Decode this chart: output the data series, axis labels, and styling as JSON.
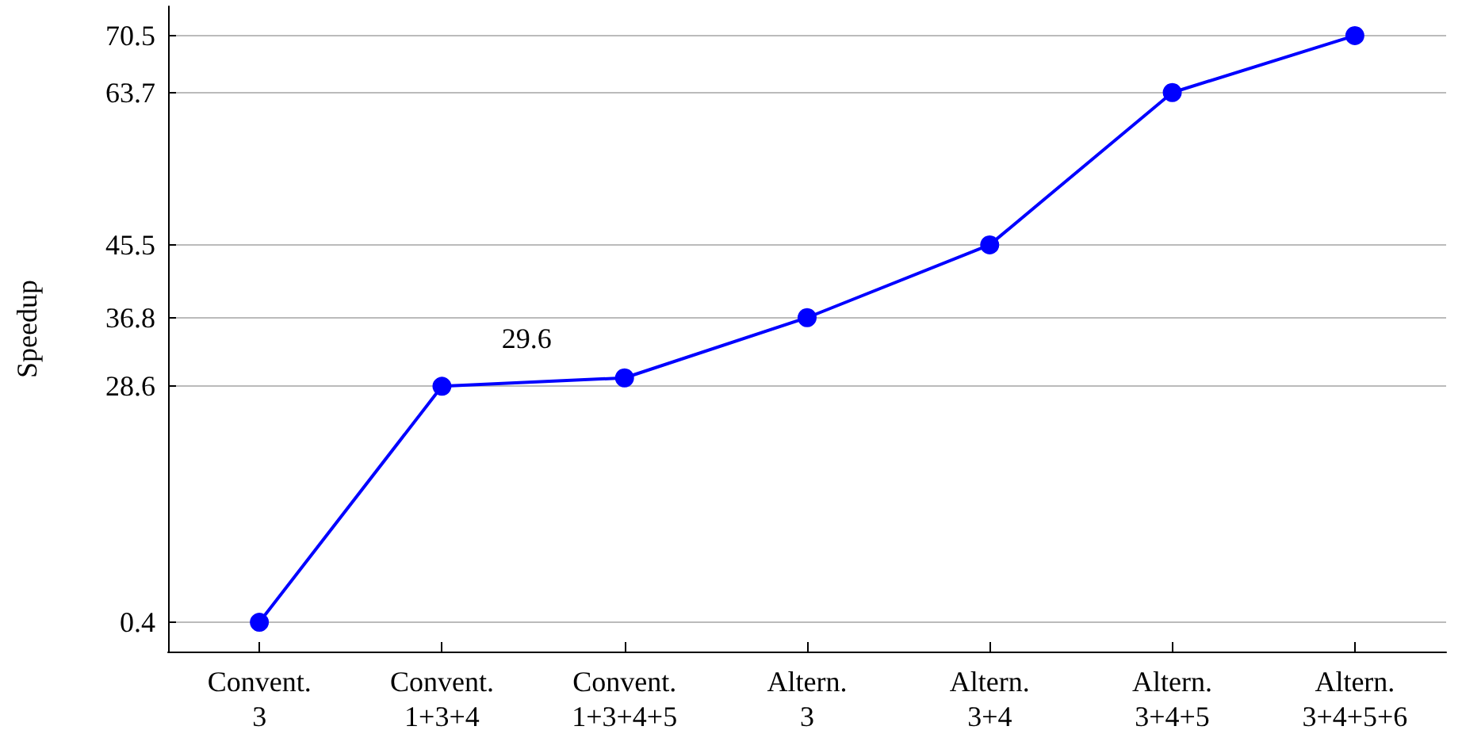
{
  "chart_data": {
    "type": "line",
    "ylabel": "Speedup",
    "categories": [
      "Convent.\n3",
      "Convent.\n1+3+4",
      "Convent.\n1+3+4+5",
      "Altern.\n3",
      "Altern.\n3+4",
      "Altern.\n3+4+5",
      "Altern.\n3+4+5+6"
    ],
    "series": [
      {
        "color": "#0000ff",
        "values": [
          0.4,
          28.6,
          29.6,
          36.8,
          45.5,
          63.7,
          70.5
        ]
      }
    ],
    "ylim": [
      -3.1,
      74
    ],
    "yticks": [
      0.4,
      28.6,
      36.8,
      45.5,
      63.7,
      70.5
    ],
    "grid": "y",
    "marker": "circle",
    "line_style": "solid",
    "annotations": [
      {
        "text": "29.6",
        "x": "Convent.\n1+3+4+5",
        "y": 29.6
      }
    ]
  }
}
